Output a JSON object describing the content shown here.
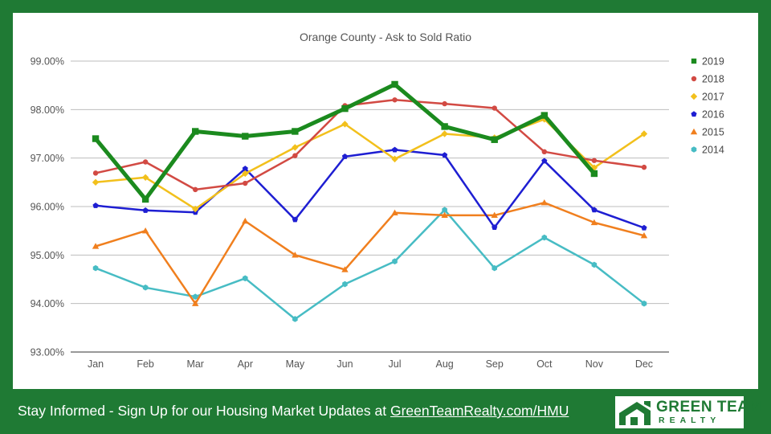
{
  "chart_data": {
    "type": "line",
    "title": "Orange County - Ask to Sold Ratio",
    "categories": [
      "Jan",
      "Feb",
      "Mar",
      "Apr",
      "May",
      "Jun",
      "Jul",
      "Aug",
      "Sep",
      "Oct",
      "Nov",
      "Dec"
    ],
    "y_tick_labels": [
      "93.00%",
      "94.00%",
      "95.00%",
      "96.00%",
      "97.00%",
      "98.00%",
      "99.00%"
    ],
    "ylim": [
      93,
      99
    ],
    "y_unit": "%",
    "grid": true,
    "legend_position": "right",
    "series": [
      {
        "name": "2019",
        "color": "#1b8a1e",
        "marker": "square",
        "line_width": 5,
        "values": [
          97.4,
          96.15,
          97.55,
          97.45,
          97.55,
          98.02,
          98.52,
          97.65,
          97.38,
          97.88,
          96.68,
          null
        ]
      },
      {
        "name": "2018",
        "color": "#d24a43",
        "marker": "circle",
        "line_width": 2.5,
        "values": [
          96.69,
          96.92,
          96.35,
          96.48,
          97.05,
          98.08,
          98.2,
          98.12,
          98.03,
          97.13,
          96.95,
          96.81
        ]
      },
      {
        "name": "2017",
        "color": "#f2c01c",
        "marker": "diamond",
        "line_width": 2.5,
        "values": [
          96.5,
          96.6,
          95.95,
          96.68,
          97.22,
          97.7,
          96.98,
          97.5,
          97.42,
          97.8,
          96.8,
          97.5
        ]
      },
      {
        "name": "2016",
        "color": "#1e1ed2",
        "marker": "pentagon",
        "line_width": 2.5,
        "values": [
          96.02,
          95.92,
          95.88,
          96.78,
          95.73,
          97.03,
          97.17,
          97.06,
          95.57,
          96.94,
          95.93,
          95.56
        ]
      },
      {
        "name": "2015",
        "color": "#f07f1e",
        "marker": "triangle",
        "line_width": 2.5,
        "values": [
          95.18,
          95.5,
          94.0,
          95.7,
          95.0,
          94.7,
          95.87,
          95.82,
          95.82,
          96.08,
          95.67,
          95.4
        ]
      },
      {
        "name": "2014",
        "color": "#47bcc4",
        "marker": "hexagon",
        "line_width": 2.5,
        "values": [
          94.73,
          94.33,
          94.14,
          94.52,
          93.68,
          94.4,
          94.87,
          95.93,
          94.73,
          95.36,
          94.8,
          94.0
        ]
      }
    ]
  },
  "footer": {
    "text": "Stay Informed - Sign Up for our Housing Market Updates at ",
    "link": "GreenTeamRealty.com/HMU"
  },
  "logo": {
    "line1": "GREEN TEAM",
    "line2": "REALTY"
  },
  "colors": {
    "background": "#1f7a34",
    "panel": "#ffffff",
    "grid": "#bdbdbd"
  }
}
